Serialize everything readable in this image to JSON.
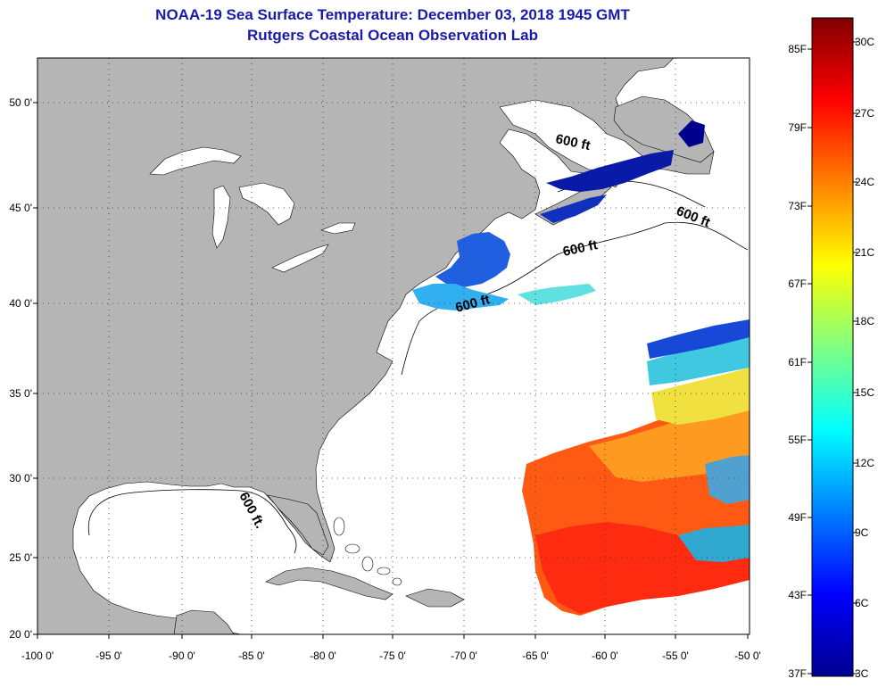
{
  "title": "NOAA-19 Sea Surface Temperature:  December 03, 2018 1945 GMT",
  "subtitle": "Rutgers Coastal Ocean Observation Lab",
  "map": {
    "lat_ticks": [
      "50 0'",
      "45 0'",
      "40 0'",
      "35 0'",
      "30 0'",
      "25 0'",
      "20 0'"
    ],
    "lon_ticks": [
      "-100 0'",
      "-95 0'",
      "-90 0'",
      "-85 0'",
      "-80 0'",
      "-75 0'",
      "-70 0'",
      "-65 0'",
      "-60 0'",
      "-55 0'",
      "-50 0'"
    ],
    "isobath_labels": [
      "600 ft",
      "600 ft",
      "600 ft",
      "600 ft",
      "600 ft."
    ],
    "colors": {
      "land": "#b5b5b5",
      "ocean": "#ffffff",
      "coast": "#000000"
    }
  },
  "colorbar": {
    "fahrenheit_labels": [
      "85F",
      "79F",
      "73F",
      "67F",
      "61F",
      "55F",
      "49F",
      "43F",
      "37F"
    ],
    "celsius_labels": [
      "30C",
      "27C",
      "24C",
      "21C",
      "18C",
      "15C",
      "12C",
      "9C",
      "6C",
      "3C"
    ],
    "colors": [
      "#00008f",
      "#0000ff",
      "#0080ff",
      "#00ffff",
      "#80ff80",
      "#ffff00",
      "#ff8000",
      "#ff0000",
      "#800000"
    ]
  }
}
